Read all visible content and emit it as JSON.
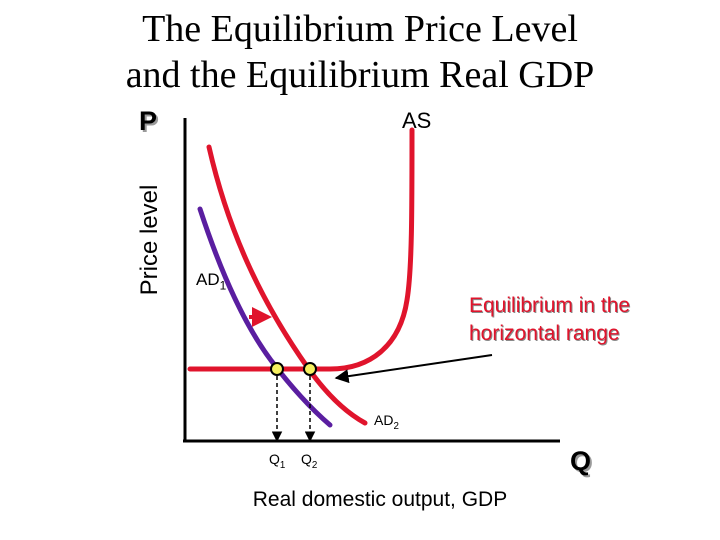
{
  "title": {
    "line1": "The Equilibrium Price Level",
    "line2": "and the Equilibrium Real GDP"
  },
  "axes": {
    "y_symbol": "P",
    "x_symbol": "Q",
    "y_label": "Price level",
    "x_label": "Real domestic output, GDP"
  },
  "curves": {
    "as_label": "AS",
    "ad1_label": "AD",
    "ad1_sub": "1",
    "ad2_label": "AD",
    "ad2_sub": "2"
  },
  "quantities": {
    "q1_label": "Q",
    "q1_sub": "1",
    "q2_label": "Q",
    "q2_sub": "2"
  },
  "annotation": {
    "line1": "Equilibrium in the",
    "line2": "horizontal range"
  },
  "colors": {
    "as_curve": "#e0142c",
    "ad2_curve": "#e0142c",
    "ad1_curve": "#5a1ea0",
    "annotation_text": "#e0142c",
    "equilibrium_point": "#f5f060"
  }
}
